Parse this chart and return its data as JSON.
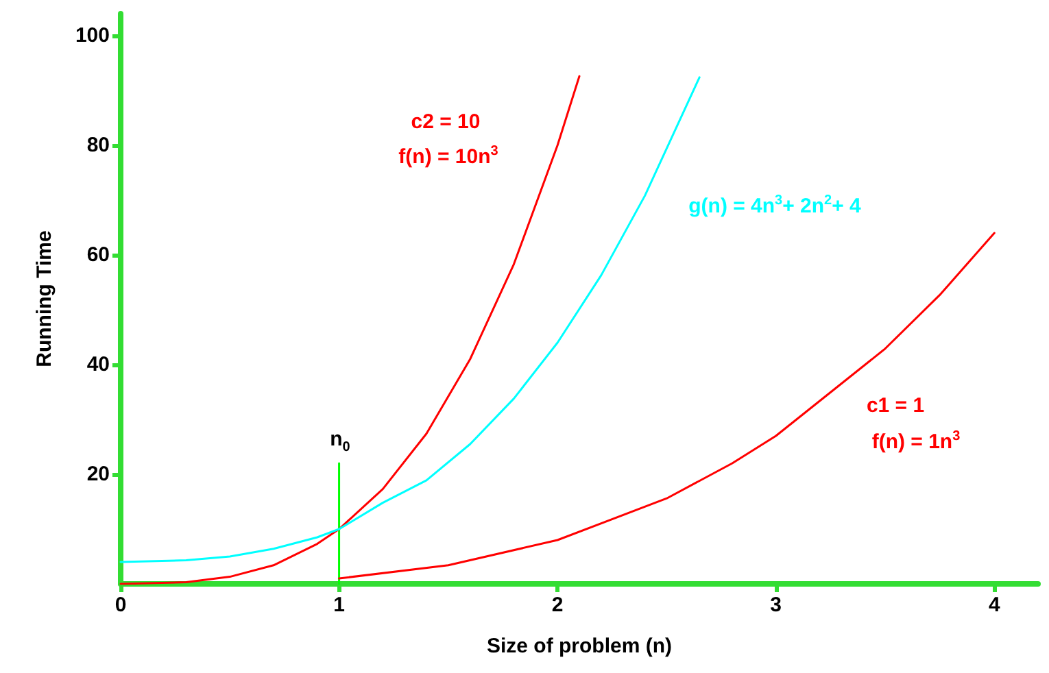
{
  "chart_data": {
    "type": "line",
    "xlabel": "Size of problem (n)",
    "ylabel": "Running Time",
    "xlim": [
      0,
      4.2
    ],
    "ylim": [
      0,
      104
    ],
    "xticks": [
      0,
      1,
      2,
      3,
      4
    ],
    "yticks": [
      20,
      40,
      60,
      80,
      100
    ],
    "grid": false,
    "marker": "none",
    "line_style": "solid",
    "series": [
      {
        "color": "#ff0000",
        "x": [
          0,
          0.3,
          0.5,
          0.7,
          0.9,
          1,
          1.2,
          1.4,
          1.6,
          1.8,
          2,
          2.1
        ],
        "values": [
          0,
          0.3,
          1.3,
          3.4,
          7.3,
          10,
          17.3,
          27.4,
          41,
          58.3,
          80,
          92.6
        ]
      },
      {
        "color": "#00ffff",
        "x": [
          0,
          0.3,
          0.5,
          0.7,
          0.9,
          1,
          1.2,
          1.4,
          1.6,
          1.8,
          2,
          2.2,
          2.4,
          2.65
        ],
        "values": [
          4,
          4.3,
          5,
          6.4,
          8.5,
          10,
          14.8,
          18.9,
          25.5,
          33.8,
          44,
          56.3,
          70.8,
          92.4
        ]
      },
      {
        "color": "#ff0000",
        "x": [
          1,
          1.5,
          2,
          2.5,
          2.8,
          3,
          3.5,
          3.75,
          4
        ],
        "values": [
          1,
          3.4,
          8,
          15.6,
          22,
          27,
          42.9,
          52.7,
          64
        ]
      },
      {
        "color": "#00ff00",
        "x": [
          1,
          1
        ],
        "values": [
          0,
          22
        ]
      }
    ],
    "annotations": [
      "c2 = 10",
      "f(n) = 10n$^{3}$",
      "g(n) = 4n$^{3}$+ 2n$^{2}$+ 4",
      "c1 = 1",
      "f(n) = 1n$^{3}$",
      "n$_{0}$"
    ]
  }
}
